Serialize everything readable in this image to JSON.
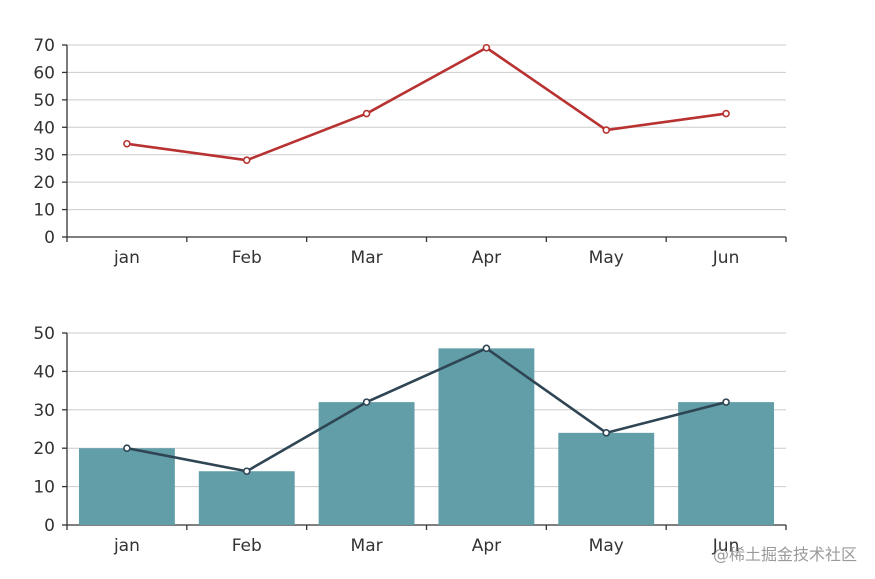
{
  "chart_data": [
    {
      "type": "line",
      "categories": [
        "jan",
        "Feb",
        "Mar",
        "Apr",
        "May",
        "Jun"
      ],
      "series": [
        {
          "values": [
            34,
            28,
            45,
            69,
            39,
            45
          ],
          "color": "#b83232"
        }
      ],
      "ylim": [
        0,
        70
      ],
      "yticks": [
        0,
        10,
        20,
        30,
        40,
        50,
        60,
        70
      ],
      "grid": true
    },
    {
      "type": "bar",
      "categories": [
        "jan",
        "Feb",
        "Mar",
        "Apr",
        "May",
        "Jun"
      ],
      "series": [
        {
          "type": "bar",
          "values": [
            20,
            14,
            32,
            46,
            24,
            32
          ],
          "color": "#619ea8"
        },
        {
          "type": "line",
          "values": [
            20,
            14,
            32,
            46,
            24,
            32
          ],
          "color": "#2f4554"
        }
      ],
      "ylim": [
        0,
        50
      ],
      "yticks": [
        0,
        10,
        20,
        30,
        40,
        50
      ],
      "grid": true
    }
  ],
  "watermark": "@稀土掘金技术社区"
}
